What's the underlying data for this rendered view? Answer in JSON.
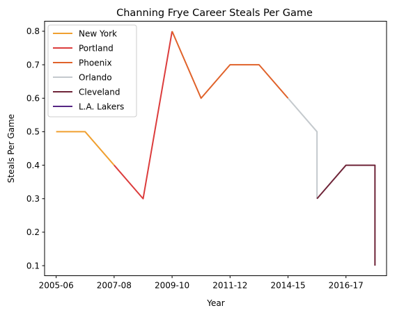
{
  "chart_data": {
    "type": "line",
    "title": "Channing Frye Career Steals Per Game",
    "xlabel": "Year",
    "ylabel": "Steals Per Game",
    "x_tick_labels": [
      "2005-06",
      "2007-08",
      "2009-10",
      "2011-12",
      "2014-15",
      "2016-17"
    ],
    "x_tick_positions": [
      0,
      2,
      4,
      6,
      8,
      10
    ],
    "xlim": [
      -0.4,
      11.4
    ],
    "ylim": [
      0.07,
      0.83
    ],
    "y_ticks": [
      0.1,
      0.2,
      0.3,
      0.4,
      0.5,
      0.6,
      0.7,
      0.8
    ],
    "y_tick_labels": [
      "0.1",
      "0.2",
      "0.3",
      "0.4",
      "0.5",
      "0.6",
      "0.7",
      "0.8"
    ],
    "grid": false,
    "legend_position": "top-left",
    "series": [
      {
        "name": "New York",
        "color": "#f0a030",
        "x": [
          0,
          1,
          2
        ],
        "y": [
          0.5,
          0.5,
          0.4
        ]
      },
      {
        "name": "Portland",
        "color": "#dc3c3c",
        "x": [
          2,
          3,
          4
        ],
        "y": [
          0.4,
          0.3,
          0.8
        ]
      },
      {
        "name": "Phoenix",
        "color": "#e0622a",
        "x": [
          4,
          5,
          6,
          7,
          8
        ],
        "y": [
          0.8,
          0.6,
          0.7,
          0.7,
          0.6
        ]
      },
      {
        "name": "Orlando",
        "color": "#c4c9cd",
        "x": [
          8,
          9,
          9
        ],
        "y": [
          0.6,
          0.5,
          0.3
        ]
      },
      {
        "name": "Cleveland",
        "color": "#6e2438",
        "x": [
          9,
          10,
          11,
          11
        ],
        "y": [
          0.3,
          0.4,
          0.4,
          0.1
        ]
      },
      {
        "name": "L.A. Lakers",
        "color": "#552583",
        "x": [],
        "y": []
      }
    ]
  }
}
